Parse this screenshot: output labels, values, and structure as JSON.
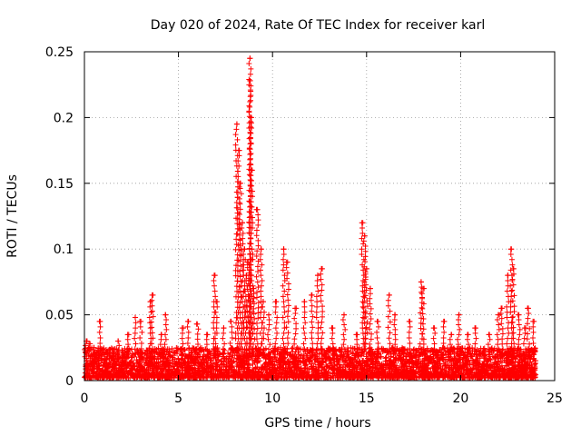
{
  "chart_data": {
    "type": "scatter",
    "title": "Day 020 of 2024, Rate Of TEC Index for receiver karl",
    "xlabel": "GPS time / hours",
    "ylabel": "ROTI / TECUs",
    "xlim": [
      0,
      25
    ],
    "ylim": [
      0,
      0.25
    ],
    "x_ticks": [
      0,
      5,
      10,
      15,
      20,
      25
    ],
    "x_tick_labels": [
      "0",
      "5",
      "10",
      "15",
      "20",
      "25"
    ],
    "y_ticks": [
      0,
      0.05,
      0.1,
      0.15,
      0.2,
      0.25
    ],
    "y_tick_labels": [
      "0",
      "0.05",
      "0.1",
      "0.15",
      "0.2",
      "0.25"
    ],
    "grid": true,
    "marker": "+",
    "color": "#ff0000",
    "baseline": {
      "x_range": [
        0,
        24
      ],
      "y_range": [
        0.002,
        0.025
      ],
      "description": "dense band of ROTI values throughout the day"
    },
    "series": [
      {
        "name": "ROTI",
        "x": [
          0.1,
          0.3,
          0.5,
          0.8,
          1.2,
          1.8,
          2.3,
          2.7,
          3.0,
          3.5,
          3.6,
          4.1,
          4.3,
          5.2,
          5.5,
          6.0,
          6.5,
          6.9,
          7.0,
          7.4,
          7.8,
          8.1,
          8.2,
          8.3,
          8.4,
          8.5,
          8.6,
          8.7,
          8.8,
          8.8,
          8.85,
          8.9,
          9.0,
          9.2,
          9.4,
          9.5,
          9.8,
          10.2,
          10.6,
          10.8,
          11.2,
          11.7,
          12.1,
          12.4,
          12.6,
          13.2,
          13.8,
          14.5,
          14.8,
          14.9,
          15.0,
          15.2,
          15.6,
          16.2,
          16.5,
          17.3,
          17.9,
          18.0,
          18.6,
          19.1,
          19.5,
          19.9,
          20.4,
          20.8,
          21.5,
          22.0,
          22.2,
          22.5,
          22.7,
          22.8,
          23.1,
          23.4,
          23.6,
          23.9
        ],
        "y": [
          0.03,
          0.028,
          0.025,
          0.045,
          0.022,
          0.03,
          0.035,
          0.048,
          0.045,
          0.06,
          0.065,
          0.035,
          0.05,
          0.04,
          0.045,
          0.043,
          0.035,
          0.08,
          0.06,
          0.04,
          0.045,
          0.195,
          0.175,
          0.15,
          0.12,
          0.1,
          0.08,
          0.09,
          0.245,
          0.228,
          0.2,
          0.16,
          0.07,
          0.13,
          0.1,
          0.06,
          0.05,
          0.06,
          0.1,
          0.09,
          0.055,
          0.06,
          0.065,
          0.08,
          0.085,
          0.04,
          0.05,
          0.035,
          0.12,
          0.11,
          0.085,
          0.07,
          0.045,
          0.065,
          0.05,
          0.045,
          0.075,
          0.07,
          0.04,
          0.045,
          0.035,
          0.05,
          0.035,
          0.04,
          0.035,
          0.05,
          0.055,
          0.08,
          0.1,
          0.085,
          0.05,
          0.04,
          0.055,
          0.045
        ]
      }
    ]
  }
}
